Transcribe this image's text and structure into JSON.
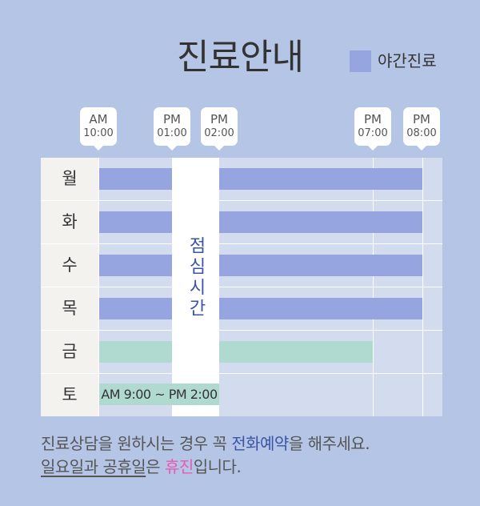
{
  "title": "진료안내",
  "legend": {
    "label": "야간진료",
    "color": "#96a5e0"
  },
  "time_markers": [
    {
      "top": "AM",
      "bottom": "10:00"
    },
    {
      "top": "PM",
      "bottom": "01:00"
    },
    {
      "top": "PM",
      "bottom": "02:00"
    },
    {
      "top": "PM",
      "bottom": "07:00"
    },
    {
      "top": "PM",
      "bottom": "08:00"
    }
  ],
  "days": [
    "월",
    "화",
    "수",
    "목",
    "금",
    "토"
  ],
  "lunch_label": "점심시간",
  "saturday_hours": "AM 9:00 ~ PM 2:00",
  "colors": {
    "night": "#96a5e0",
    "day": "#b0dad0",
    "grid": "#d3dcef"
  },
  "notice": {
    "line1_a": "진료상담을 원하시는 경우 꼭 ",
    "line1_b": "전화예약",
    "line1_c": "을 해주세요.",
    "line2_a": "일요일과 공휴일",
    "line2_b": "은 ",
    "line2_c": "휴진",
    "line2_d": "입니다."
  }
}
